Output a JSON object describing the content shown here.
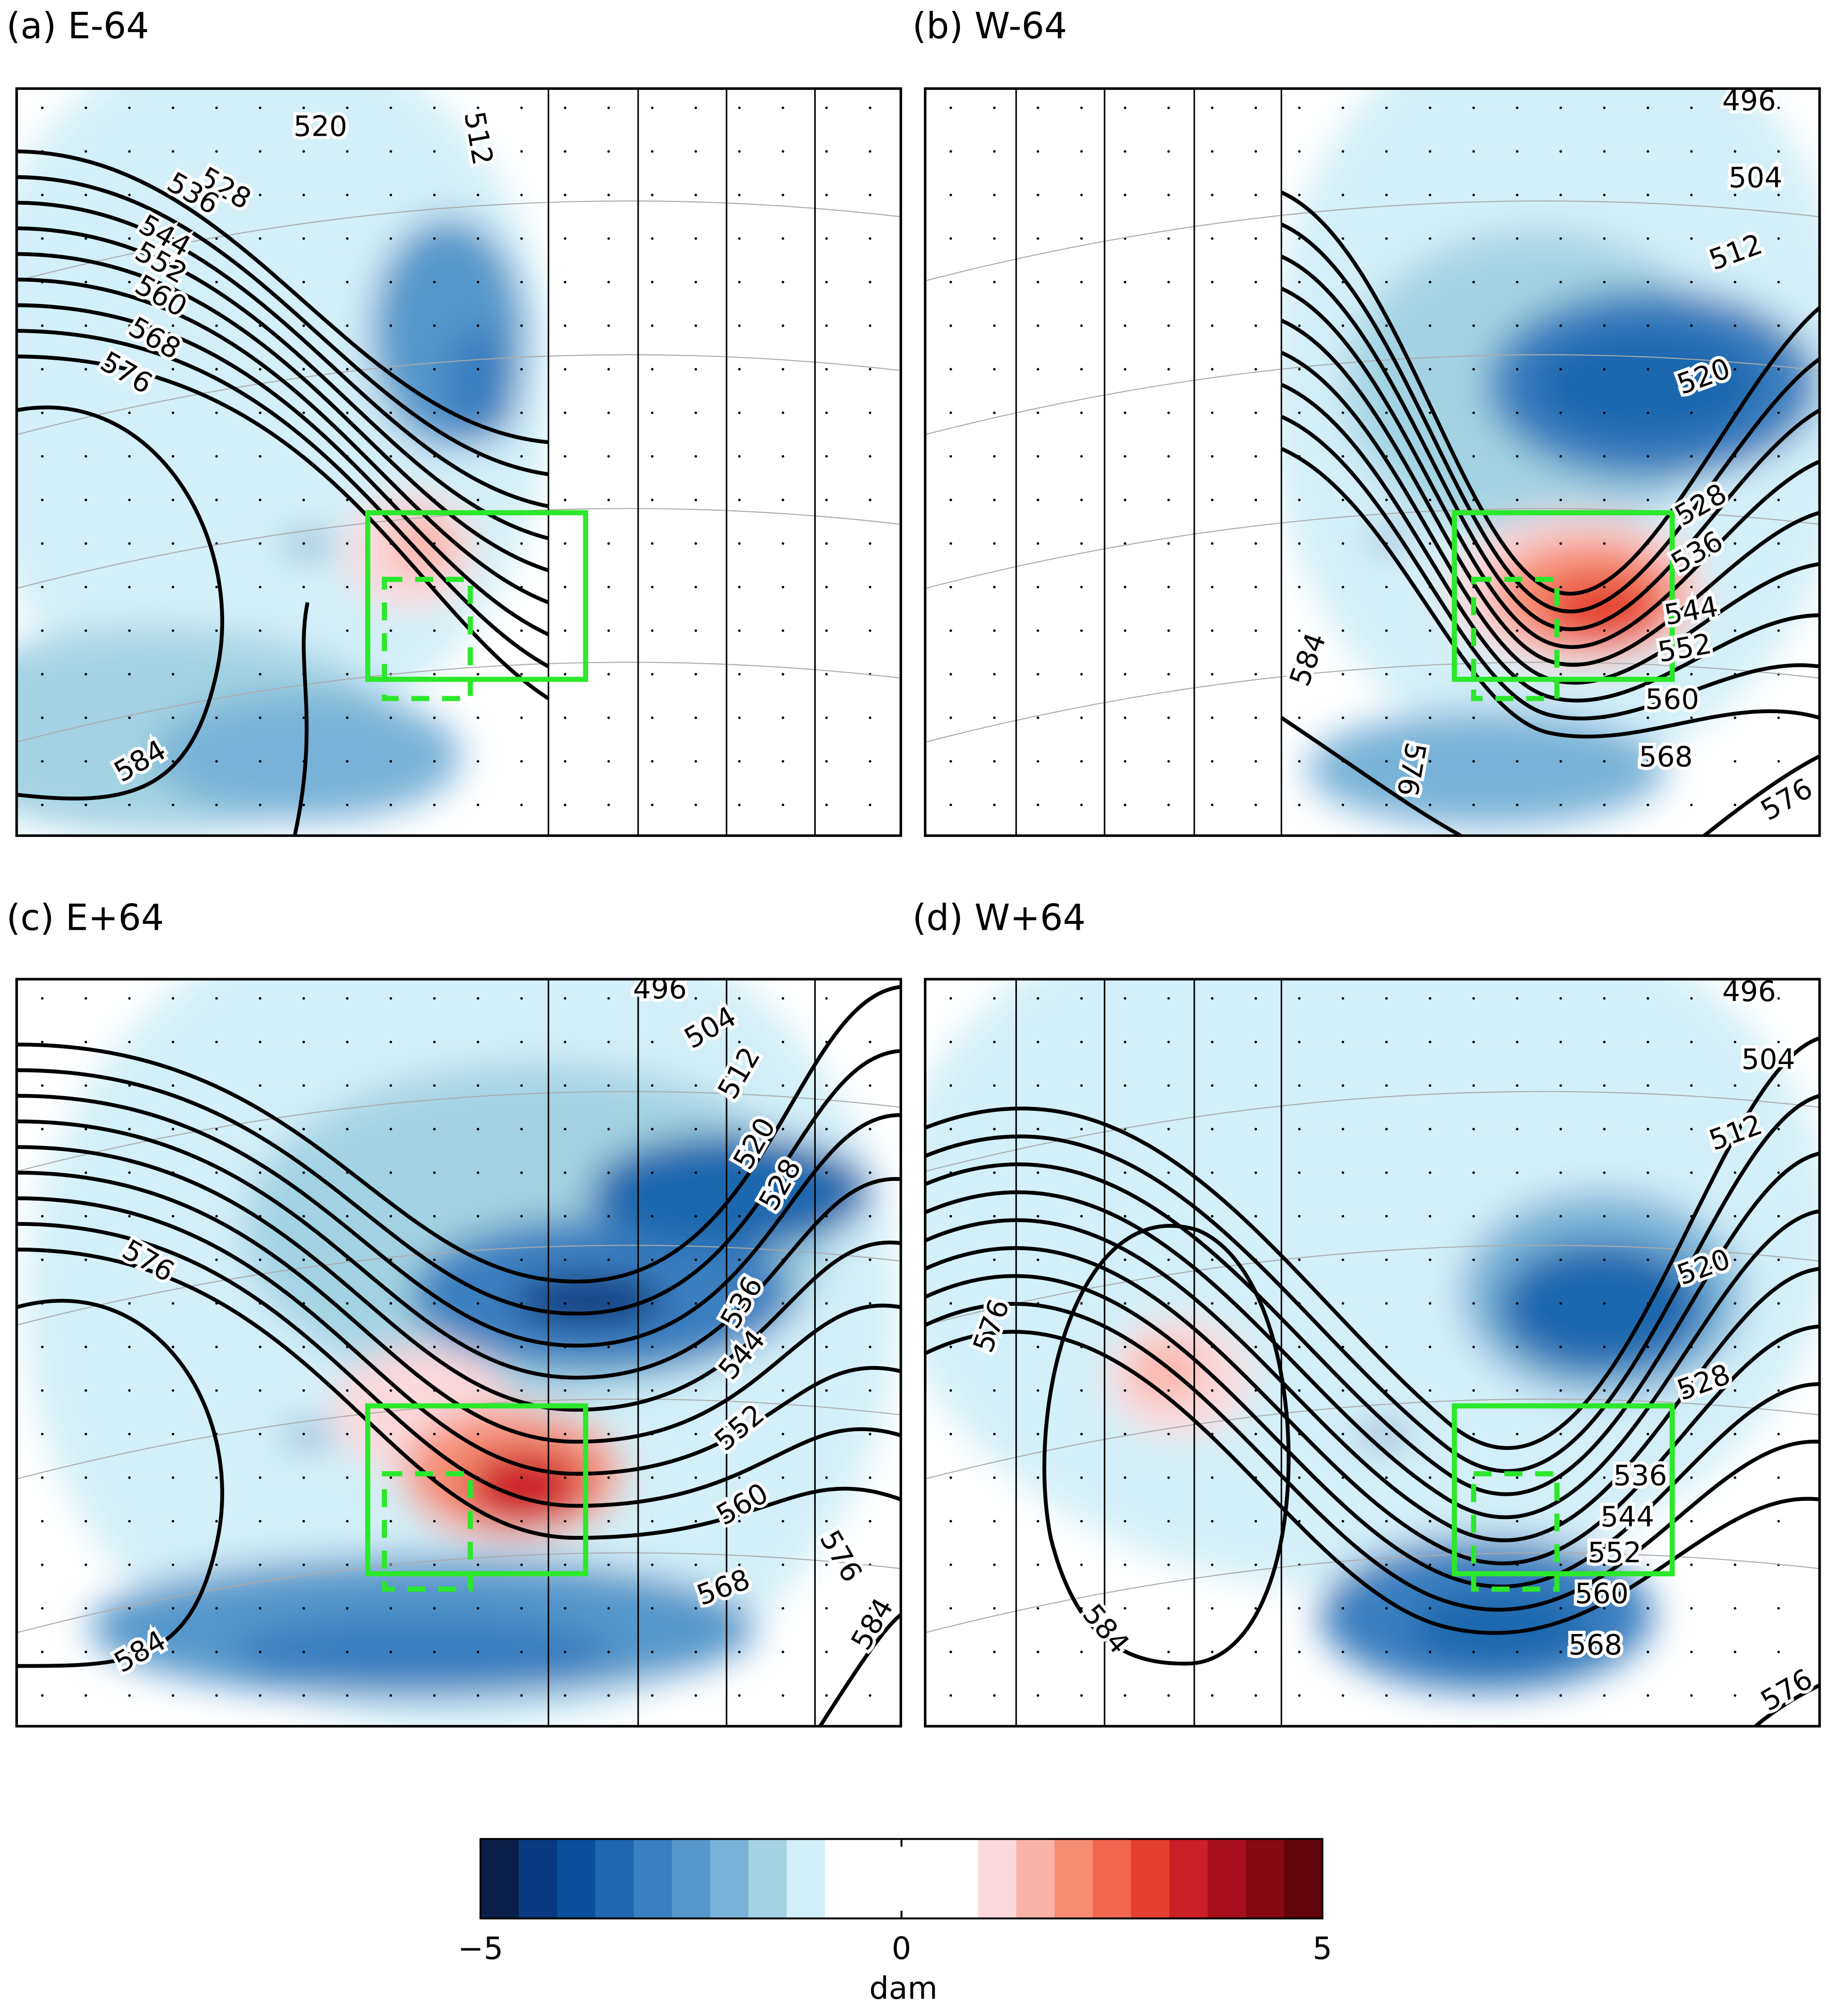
{
  "panels": [
    {
      "title": "(a) E-64",
      "contour_labels": [
        520,
        512,
        528,
        536,
        544,
        552,
        560,
        568,
        576,
        584
      ]
    },
    {
      "title": "(b) W-64",
      "contour_labels": [
        496,
        504,
        512,
        520,
        528,
        536,
        544,
        552,
        560,
        568,
        576,
        584,
        576
      ]
    },
    {
      "title": "(c) E+64",
      "contour_labels": [
        496,
        504,
        512,
        520,
        528,
        536,
        544,
        552,
        560,
        568,
        576,
        584,
        576,
        584
      ]
    },
    {
      "title": "(d) W+64",
      "contour_labels": [
        496,
        504,
        512,
        520,
        528,
        536,
        544,
        552,
        560,
        568,
        576,
        576,
        584
      ]
    }
  ],
  "colorbar": {
    "label": "dam",
    "lim": [
      -5,
      5
    ],
    "ticks": [
      {
        "value": -5,
        "label": "−5"
      },
      0,
      5
    ],
    "colors": [
      "#0c1f4a",
      "#0a3a80",
      "#0b4f9c",
      "#1f67ae",
      "#3a7fbf",
      "#5597cb",
      "#78b2d8",
      "#a3d3e2",
      "#d3eff7",
      "#ffffff",
      "#ffffff",
      "#ffffff",
      "#ffffff",
      "#fcd9dc",
      "#f9b3a6",
      "#f68d72",
      "#f2654e",
      "#e4402f",
      "#cc1f26",
      "#a80f1c",
      "#860813",
      "#62050c"
    ]
  }
}
